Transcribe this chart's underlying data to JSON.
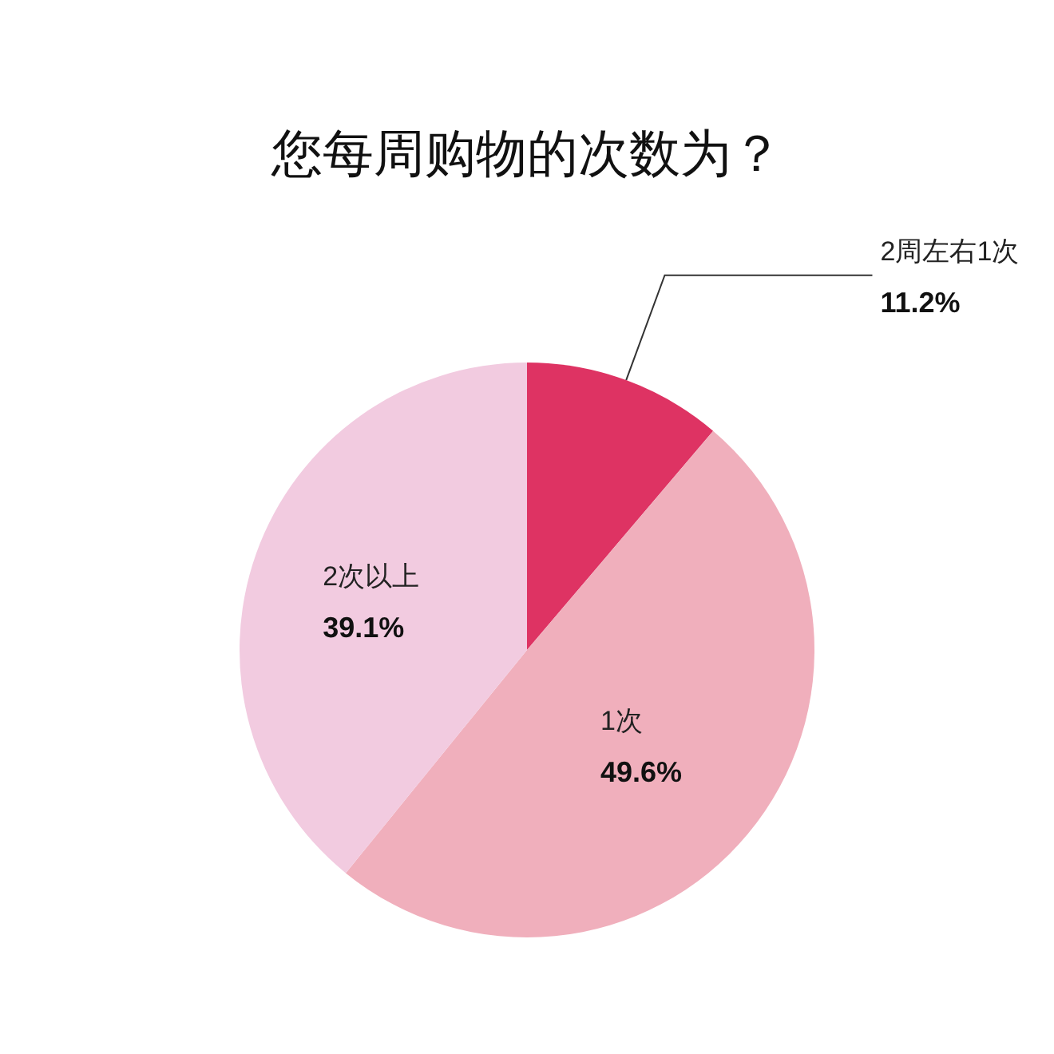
{
  "chart_data": {
    "type": "pie",
    "title": "您每周购物的次数为？",
    "categories": [
      "2周左右1次",
      "1次",
      "2次以上"
    ],
    "values": [
      11.2,
      49.6,
      39.1
    ],
    "value_labels": [
      "11.2%",
      "49.6%",
      "39.1%"
    ],
    "colors": [
      "#de3363",
      "#f0afbc",
      "#f2cbe0"
    ],
    "legend": false
  }
}
